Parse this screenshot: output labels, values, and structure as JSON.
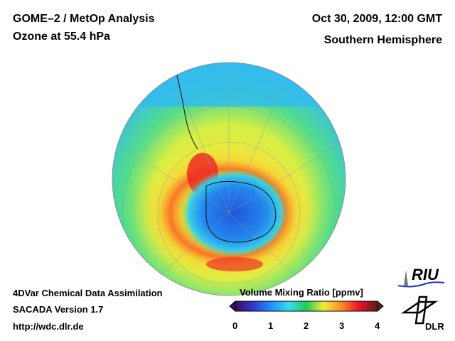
{
  "header": {
    "title_line1": "GOME–2 / MetOp Analysis",
    "title_line2": "Ozone at 55.4 hPa",
    "date": "Oct 30, 2009, 12:00 GMT",
    "region": "Southern Hemisphere"
  },
  "footer": {
    "line1": "4DVar Chemical Data Assimilation",
    "line2": "SACADA Version 1.7",
    "line3": "http://wdc.dlr.de"
  },
  "colorbar": {
    "title": "Volume Mixing Ratio [ppmv]",
    "ticks": [
      "0",
      "1",
      "2",
      "3",
      "4"
    ],
    "colors": [
      "#3a0f5a",
      "#3333cc",
      "#1e90ff",
      "#33ddee",
      "#22cc55",
      "#eeee33",
      "#ff8822",
      "#ee1122",
      "#5a1e1e"
    ]
  },
  "logos": {
    "riu": "RIU",
    "dlr": "DLR"
  }
}
